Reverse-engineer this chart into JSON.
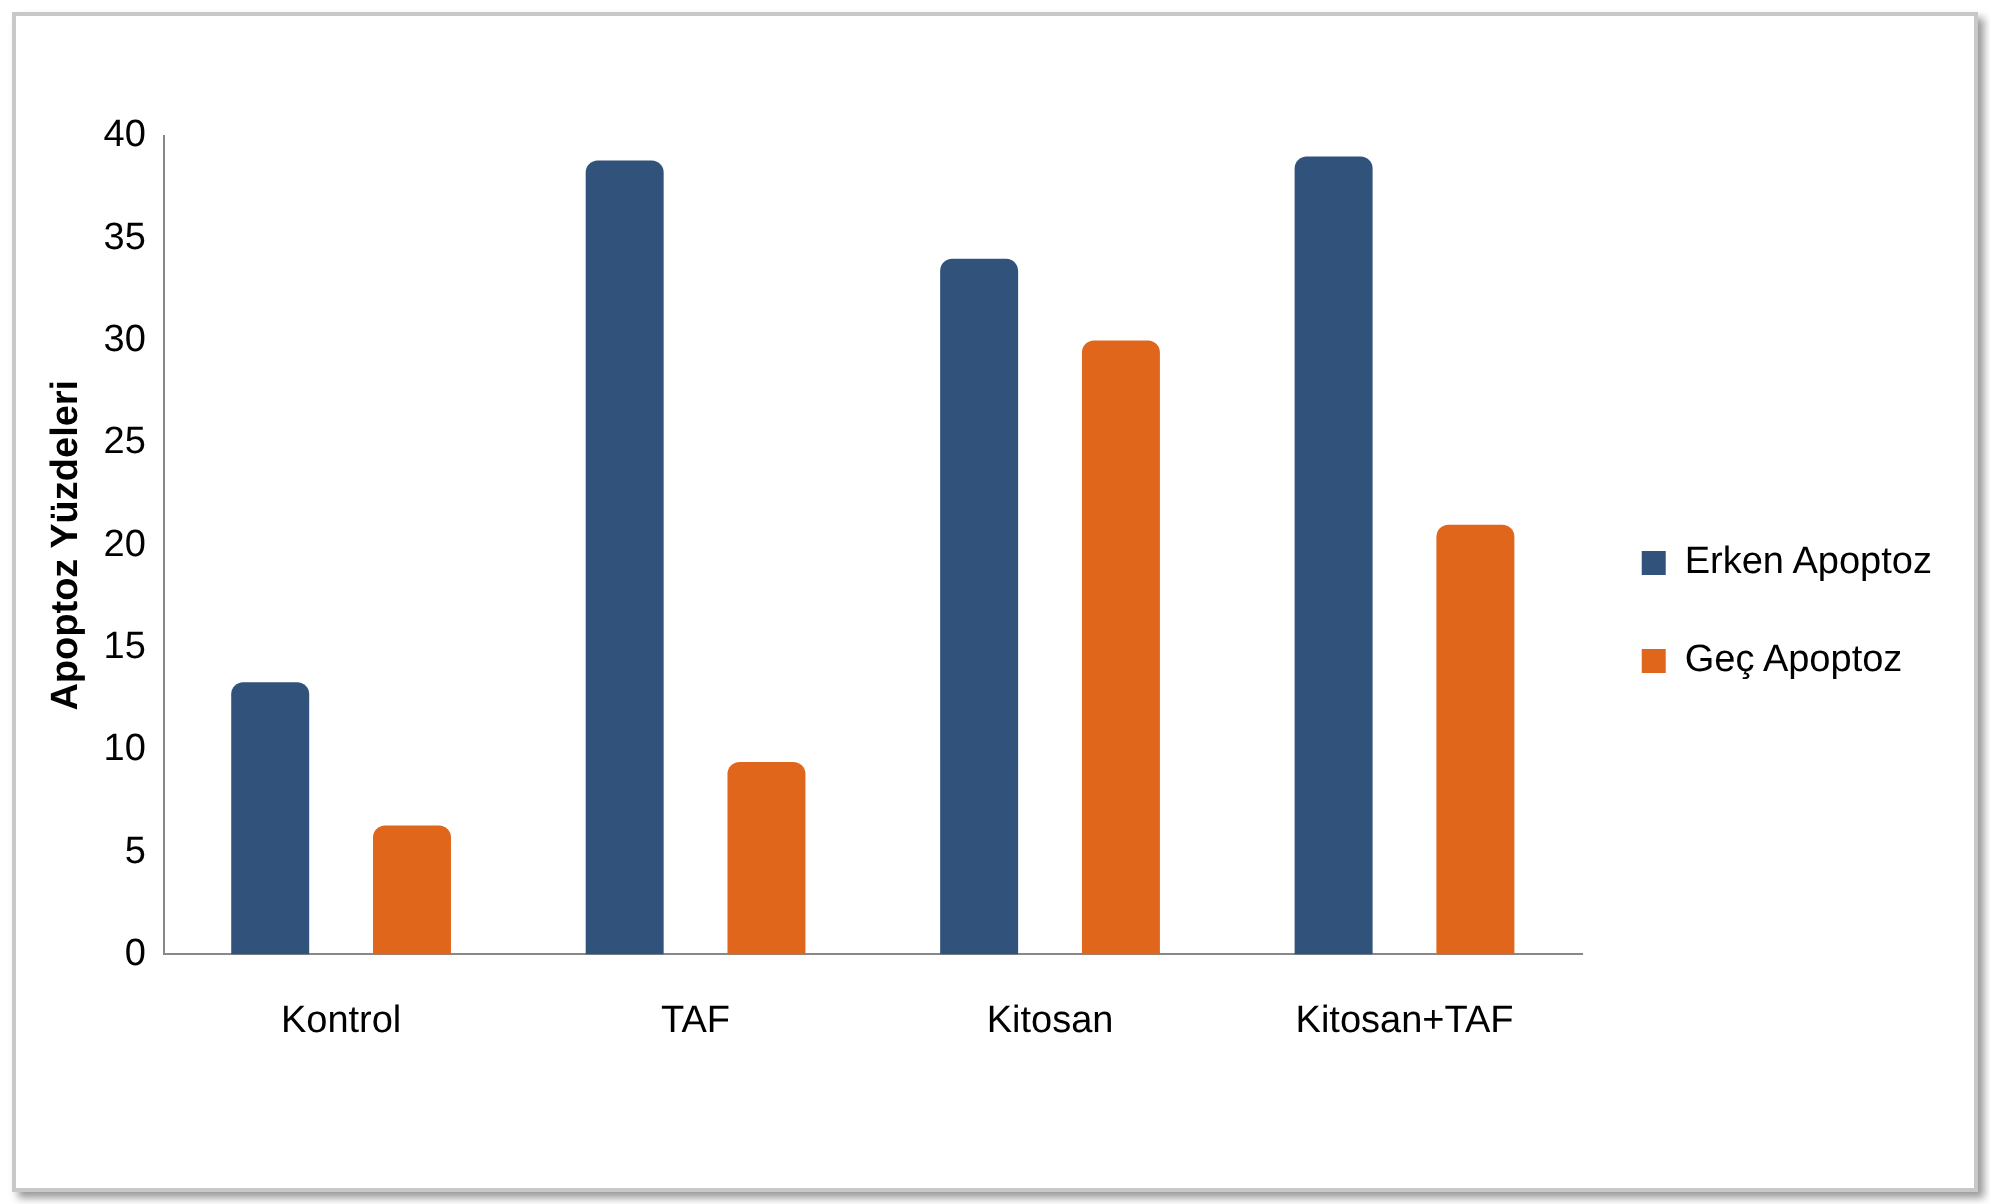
{
  "chart_data": {
    "type": "bar",
    "ylabel": "Apoptoz Yüzdeleri",
    "categories": [
      "Kontrol",
      "TAF",
      "Kitosan",
      "Kitosan+TAF"
    ],
    "series": [
      {
        "name": "Erken Apoptoz",
        "color": "#31527a",
        "values": [
          13.3,
          38.8,
          34,
          39
        ]
      },
      {
        "name": "Geç Apoptoz",
        "color": "#e0661c",
        "values": [
          6.3,
          9.4,
          30,
          21
        ]
      }
    ],
    "ylim": [
      0,
      40
    ],
    "yticks": [
      0,
      5,
      10,
      15,
      20,
      25,
      30,
      35,
      40
    ],
    "grid": false,
    "legend": "right"
  }
}
